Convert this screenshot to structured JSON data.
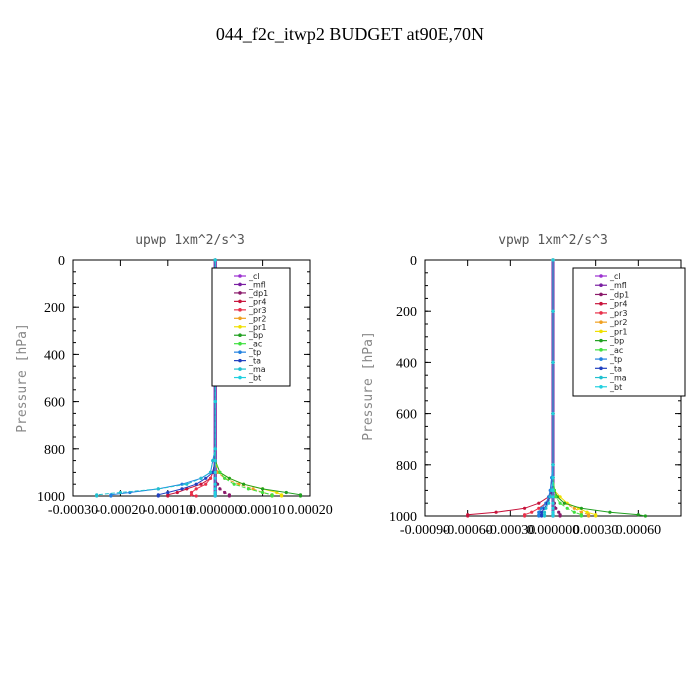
{
  "page": {
    "title": "044_f2c_itwp2  BUDGET at90E,70N"
  },
  "series_colors": {
    "_cl": "#9b30d0",
    "_mfl": "#7a1fa2",
    "_dp1": "#8b1a6b",
    "_pr4": "#c8143c",
    "_pr3": "#e8304a",
    "_pr2": "#f0a020",
    "_pr1": "#f0e000",
    "_bp": "#20a020",
    "_ac": "#40e040",
    "_tp": "#2080e0",
    "_ta": "#2040c0",
    "_ma": "#20c0d0",
    "_bt": "#20d0e0"
  },
  "chart_data": [
    {
      "type": "line",
      "title": "upwp  1xm^2/s^3",
      "ylabel": "Pressure [hPa]",
      "xlabel": "",
      "y_inverted": true,
      "ylim": [
        0,
        1000
      ],
      "xlim": [
        -0.0003,
        0.0002
      ],
      "y_ticks": [
        "0",
        "200",
        "400",
        "600",
        "800",
        "1000"
      ],
      "x_ticks": [
        "-0.00030",
        "-0.00020",
        "-0.00010",
        "0.000000",
        "0.00010",
        "0.00020"
      ],
      "legend_placement": "top-right",
      "legend": [
        "_cl",
        "_mfl",
        "_dp1",
        "_pr4",
        "_pr3",
        "_pr2",
        "_pr1",
        "_bp",
        "_ac",
        "_tp",
        "_ta",
        "_ma",
        "_bt"
      ],
      "y_levels": [
        0,
        100,
        200,
        300,
        400,
        500,
        600,
        700,
        800,
        850,
        900,
        925,
        950,
        970,
        985,
        995,
        1000
      ],
      "series": [
        {
          "name": "_cl",
          "values": [
            0,
            0,
            0,
            0,
            0,
            0,
            0,
            0,
            0,
            0,
            0,
            0,
            0,
            0,
            0,
            0,
            0
          ]
        },
        {
          "name": "_mfl",
          "values": [
            0,
            0,
            0,
            0,
            0,
            0,
            0,
            0,
            0,
            0,
            0,
            0,
            0,
            0,
            0,
            0,
            0
          ]
        },
        {
          "name": "_dp1",
          "values": [
            0,
            0,
            0,
            0,
            0,
            0,
            0,
            0,
            0,
            0,
            0,
            0,
            5e-06,
            1e-05,
            2e-05,
            3e-05,
            3e-05
          ]
        },
        {
          "name": "_pr4",
          "values": [
            0,
            0,
            0,
            0,
            0,
            0,
            0,
            0,
            0,
            0,
            -5e-06,
            -1e-05,
            -3e-05,
            -6e-05,
            -8e-05,
            -0.0001,
            -0.0001
          ]
        },
        {
          "name": "_pr3",
          "values": [
            0,
            0,
            0,
            0,
            0,
            0,
            0,
            0,
            0,
            0,
            -5e-06,
            -1e-05,
            -2e-05,
            -4e-05,
            -5e-05,
            -5e-05,
            -4e-05
          ]
        },
        {
          "name": "_pr2",
          "values": [
            0,
            0,
            0,
            0,
            0,
            0,
            0,
            0,
            0,
            0,
            5e-06,
            2e-05,
            5e-05,
            8e-05,
            0.0001,
            0.00012,
            0.00012
          ]
        },
        {
          "name": "_pr1",
          "values": [
            0,
            0,
            0,
            0,
            0,
            0,
            0,
            0,
            0,
            0,
            1e-05,
            3e-05,
            6e-05,
            0.0001,
            0.00013,
            0.00014,
            0.00014
          ]
        },
        {
          "name": "_bp",
          "values": [
            0,
            0,
            0,
            0,
            0,
            0,
            0,
            0,
            0,
            0,
            1e-05,
            3e-05,
            6e-05,
            0.0001,
            0.00015,
            0.00018,
            0.00018
          ]
        },
        {
          "name": "_ac",
          "values": [
            0,
            0,
            0,
            0,
            0,
            0,
            0,
            0,
            0,
            0,
            1e-05,
            2e-05,
            4e-05,
            7e-05,
            0.0001,
            0.00012,
            0.00012
          ]
        },
        {
          "name": "_tp",
          "values": [
            0,
            0,
            0,
            0,
            0,
            0,
            0,
            0,
            0,
            -5e-06,
            -1e-05,
            -3e-05,
            -7e-05,
            -0.00012,
            -0.00018,
            -0.00022,
            -0.00022
          ]
        },
        {
          "name": "_ta",
          "values": [
            0,
            0,
            0,
            0,
            0,
            0,
            0,
            0,
            0,
            0,
            -5e-06,
            -2e-05,
            -4e-05,
            -7e-05,
            -0.0001,
            -0.00012,
            -0.00012
          ]
        },
        {
          "name": "_ma",
          "values": [
            0,
            0,
            0,
            0,
            0,
            0,
            0,
            0,
            0,
            -5e-06,
            -1e-05,
            -3e-05,
            -6e-05,
            -0.00012,
            -0.0002,
            -0.00025,
            -0.00025
          ]
        },
        {
          "name": "_bt",
          "values": [
            0,
            0,
            0,
            0,
            0,
            0,
            0,
            0,
            0,
            0,
            0,
            0,
            0,
            0,
            0,
            0,
            0
          ]
        }
      ]
    },
    {
      "type": "line",
      "title": "vpwp  1xm^2/s^3",
      "ylabel": "Pressure [hPa]",
      "xlabel": "",
      "y_inverted": true,
      "ylim": [
        0,
        1000
      ],
      "xlim": [
        -0.0009,
        0.0009
      ],
      "y_ticks": [
        "0",
        "200",
        "400",
        "600",
        "800",
        "1000"
      ],
      "x_ticks": [
        "-0.00090",
        "-0.00060",
        "-0.00030",
        "0.000000",
        "0.00030",
        "0.00060"
      ],
      "legend_placement": "top-right",
      "legend": [
        "_cl",
        "_mfl",
        "_dp1",
        "_pr4",
        "_pr3",
        "_pr2",
        "_pr1",
        "_bp",
        "_ac",
        "_tp",
        "_ta",
        "_ma",
        "_bt"
      ],
      "y_levels": [
        0,
        100,
        200,
        300,
        400,
        500,
        600,
        700,
        800,
        850,
        900,
        925,
        950,
        970,
        985,
        995,
        1000
      ],
      "series": [
        {
          "name": "_cl",
          "values": [
            0,
            0,
            0,
            0,
            0,
            0,
            0,
            0,
            0,
            0,
            0,
            0,
            0,
            0,
            0,
            0,
            0
          ]
        },
        {
          "name": "_mfl",
          "values": [
            0,
            0,
            0,
            0,
            0,
            0,
            0,
            0,
            0,
            0,
            0,
            0,
            0,
            0,
            0,
            0,
            0
          ]
        },
        {
          "name": "_dp1",
          "values": [
            0,
            0,
            0,
            0,
            0,
            0,
            0,
            0,
            0,
            0,
            0,
            0,
            1e-05,
            2e-05,
            4e-05,
            5e-05,
            5e-05
          ]
        },
        {
          "name": "_pr4",
          "values": [
            0,
            0,
            0,
            0,
            0,
            0,
            0,
            0,
            0,
            0,
            -1e-05,
            -3e-05,
            -0.0001,
            -0.0002,
            -0.0004,
            -0.0006,
            -0.0006
          ]
        },
        {
          "name": "_pr3",
          "values": [
            0,
            0,
            0,
            0,
            0,
            0,
            0,
            0,
            0,
            0,
            -1e-05,
            -2e-05,
            -5e-05,
            -0.0001,
            -0.00015,
            -0.0002,
            -0.0002
          ]
        },
        {
          "name": "_pr2",
          "values": [
            0,
            0,
            0,
            0,
            0,
            0,
            0,
            0,
            0,
            0,
            1e-05,
            3e-05,
            8e-05,
            0.00015,
            0.0002,
            0.00025,
            0.00025
          ]
        },
        {
          "name": "_pr1",
          "values": [
            0,
            0,
            0,
            0,
            0,
            0,
            0,
            0,
            0,
            0,
            1e-05,
            5e-05,
            0.0001,
            0.00018,
            0.00024,
            0.0003,
            0.0003
          ]
        },
        {
          "name": "_bp",
          "values": [
            0,
            0,
            0,
            0,
            0,
            0,
            0,
            0,
            0,
            0,
            1e-05,
            3e-05,
            8e-05,
            0.0002,
            0.0004,
            0.0006,
            0.00065
          ]
        },
        {
          "name": "_ac",
          "values": [
            0,
            0,
            0,
            0,
            0,
            0,
            0,
            0,
            0,
            0,
            1e-05,
            2e-05,
            5e-05,
            0.0001,
            0.00015,
            0.0002,
            0.0002
          ]
        },
        {
          "name": "_tp",
          "values": [
            0,
            0,
            0,
            0,
            0,
            0,
            0,
            0,
            0,
            -1e-05,
            -2e-05,
            -3e-05,
            -5e-05,
            -8e-05,
            -0.0001,
            -0.0001,
            -0.0001
          ]
        },
        {
          "name": "_ta",
          "values": [
            0,
            0,
            0,
            0,
            0,
            0,
            0,
            0,
            0,
            0,
            -1e-05,
            -2e-05,
            -4e-05,
            -6e-05,
            -8e-05,
            -8e-05,
            -8e-05
          ]
        },
        {
          "name": "_ma",
          "values": [
            0,
            0,
            0,
            0,
            0,
            0,
            0,
            0,
            0,
            0,
            -1e-05,
            -2e-05,
            -3e-05,
            -5e-05,
            -6e-05,
            -6e-05,
            -6e-05
          ]
        },
        {
          "name": "_bt",
          "values": [
            0,
            0,
            0,
            0,
            0,
            0,
            0,
            0,
            0,
            0,
            0,
            0,
            0,
            0,
            0,
            0,
            0
          ]
        }
      ]
    }
  ]
}
